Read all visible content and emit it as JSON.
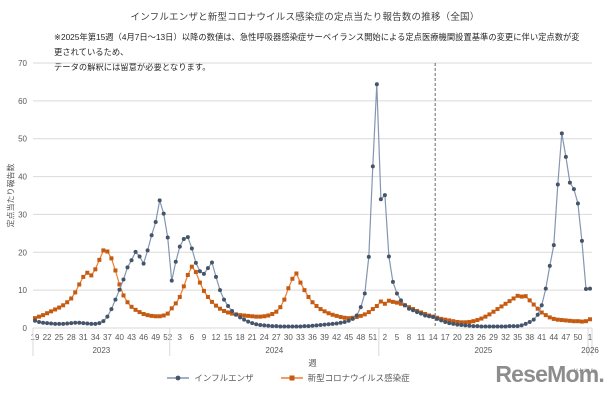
{
  "title": "インフルエンザと新型コロナウイルス感染症の定点当たり報告数の推移（全国）",
  "note": {
    "line1": "※2025年第15週（4月7日～13日）以降の数値は、急性呼吸器感染症サーベイランス開始による定点医療機関設置基準の変更に伴い定点数が変更されているため、",
    "line2": "データの解釈には留意が必要となります。"
  },
  "axes": {
    "y_title": "定点当たり報告数",
    "x_title": "週",
    "y_ticks": [
      0,
      10,
      20,
      30,
      40,
      50,
      60,
      70
    ],
    "x_tick_labels": [
      "19",
      "22",
      "25",
      "28",
      "31",
      "34",
      "37",
      "40",
      "43",
      "46",
      "49",
      "52",
      "3",
      "6",
      "9",
      "12",
      "15",
      "18",
      "21",
      "24",
      "27",
      "30",
      "33",
      "36",
      "39",
      "42",
      "45",
      "48",
      "51",
      "2",
      "5",
      "8",
      "11",
      "14",
      "17",
      "20",
      "23",
      "26",
      "29",
      "32",
      "35",
      "38",
      "41",
      "44",
      "47",
      "50",
      "1"
    ],
    "year_labels": [
      "2023",
      "2024",
      "2025",
      "2026"
    ],
    "year_point_counts": [
      34,
      52,
      52,
      1
    ]
  },
  "annotation": {
    "dashed_line_at": "2025年第15週",
    "dashed_line_index": 100
  },
  "legend": [
    {
      "label": "インフルエンザ",
      "line_color": "#8496B0",
      "marker_color": "#44546A",
      "marker": "circle"
    },
    {
      "label": "新型コロナウイルス感染症",
      "line_color": "#ED7D31",
      "marker_color": "#C55A11",
      "marker": "square"
    }
  ],
  "logo": {
    "text": "ReseMom",
    "suffix": ".",
    "ruby": "リセマム",
    "color": "#8d8d8d"
  },
  "chart_data": {
    "type": "line",
    "x_start": "2023-W19",
    "x_end": "2026-W1",
    "n_points": 139,
    "ylim": [
      0,
      70
    ],
    "grid": true,
    "legend_position": "bottom",
    "series": [
      {
        "name": "インフルエンザ",
        "values": [
          1.9,
          1.6,
          1.4,
          1.3,
          1.2,
          1.1,
          1.1,
          1.1,
          1.2,
          1.3,
          1.4,
          1.4,
          1.3,
          1.2,
          1.1,
          1.1,
          1.3,
          1.8,
          3.0,
          5.0,
          7.5,
          10.1,
          12.8,
          16.0,
          17.9,
          20.1,
          18.9,
          17.0,
          20.5,
          24.5,
          28.0,
          33.7,
          30.2,
          23.9,
          12.5,
          17.5,
          21.5,
          23.5,
          24.0,
          21.0,
          17.2,
          15.0,
          14.3,
          15.8,
          17.3,
          13.5,
          10.0,
          7.5,
          5.8,
          4.5,
          3.5,
          2.8,
          2.2,
          1.7,
          1.3,
          1.0,
          0.8,
          0.7,
          0.6,
          0.5,
          0.5,
          0.4,
          0.4,
          0.4,
          0.4,
          0.4,
          0.4,
          0.5,
          0.5,
          0.6,
          0.7,
          0.8,
          0.9,
          1.0,
          1.1,
          1.2,
          1.4,
          1.6,
          1.9,
          2.4,
          3.3,
          5.5,
          9.1,
          18.8,
          42.7,
          64.4,
          34.0,
          35.1,
          18.9,
          12.2,
          9.1,
          7.3,
          6.0,
          5.1,
          4.7,
          4.2,
          3.8,
          3.3,
          3.1,
          2.9,
          2.4,
          2.0,
          1.6,
          1.3,
          1.1,
          0.9,
          0.8,
          0.7,
          0.6,
          0.5,
          0.5,
          0.4,
          0.4,
          0.4,
          0.4,
          0.4,
          0.4,
          0.4,
          0.5,
          0.5,
          0.5,
          0.7,
          1.1,
          1.6,
          2.2,
          3.5,
          6.0,
          10.4,
          16.4,
          21.9,
          37.9,
          51.4,
          45.2,
          38.4,
          36.7,
          32.9,
          23.0,
          10.3,
          10.4
        ]
      },
      {
        "name": "新型コロナウイルス感染症",
        "values": [
          2.6,
          3.0,
          3.4,
          3.9,
          4.4,
          4.9,
          5.4,
          6.0,
          6.8,
          7.8,
          9.4,
          11.5,
          13.5,
          14.6,
          13.9,
          15.5,
          18.0,
          20.5,
          20.2,
          18.4,
          15.2,
          11.5,
          8.6,
          6.8,
          5.6,
          4.8,
          4.2,
          3.7,
          3.4,
          3.2,
          3.1,
          3.1,
          3.3,
          3.8,
          5.2,
          6.5,
          8.2,
          11.0,
          14.0,
          16.2,
          14.8,
          12.0,
          9.8,
          8.2,
          6.9,
          5.9,
          5.1,
          4.5,
          4.1,
          3.8,
          3.6,
          3.4,
          3.3,
          3.2,
          3.1,
          3.0,
          3.0,
          3.1,
          3.3,
          3.7,
          4.3,
          5.5,
          7.5,
          10.5,
          13.0,
          14.4,
          12.0,
          10.0,
          8.2,
          6.8,
          5.8,
          5.0,
          4.4,
          3.9,
          3.5,
          3.2,
          2.9,
          2.7,
          2.6,
          2.7,
          2.9,
          3.2,
          3.6,
          4.2,
          5.0,
          5.8,
          7.0,
          6.4,
          7.2,
          6.9,
          6.7,
          6.4,
          6.0,
          5.5,
          5.0,
          4.5,
          4.1,
          3.7,
          3.3,
          3.0,
          2.7,
          2.4,
          2.2,
          2.0,
          1.8,
          1.6,
          1.5,
          1.5,
          1.6,
          1.8,
          2.1,
          2.5,
          3.0,
          3.6,
          4.3,
          5.0,
          5.7,
          6.4,
          7.1,
          7.8,
          8.5,
          8.3,
          8.4,
          7.3,
          6.2,
          5.1,
          4.1,
          3.4,
          2.8,
          2.4,
          2.2,
          2.1,
          2.0,
          1.9,
          1.8,
          1.8,
          1.7,
          1.8,
          2.3
        ]
      }
    ]
  }
}
